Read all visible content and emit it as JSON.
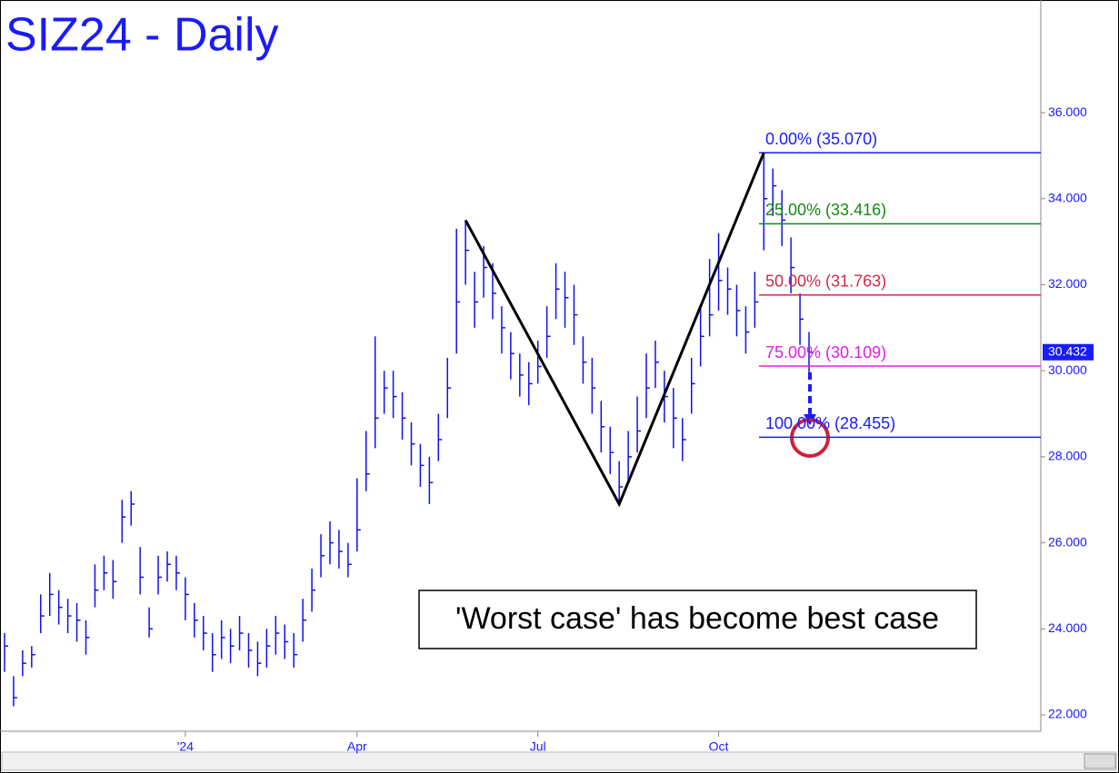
{
  "chart_data": {
    "type": "ohlc",
    "title": "SIZ24 - Daily",
    "annotation": "'Worst case' has become best case",
    "color": "#1010ee",
    "categories": [
      null,
      null,
      null,
      null,
      null,
      null,
      null,
      null,
      null,
      null,
      null,
      null,
      null,
      null,
      null,
      null,
      null,
      null,
      null,
      null,
      "'24",
      null,
      null,
      null,
      null,
      null,
      null,
      null,
      null,
      null,
      null,
      null,
      null,
      null,
      null,
      null,
      null,
      null,
      null,
      "Apr",
      null,
      null,
      null,
      null,
      null,
      null,
      null,
      null,
      null,
      null,
      null,
      null,
      null,
      null,
      null,
      null,
      null,
      null,
      null,
      "Jul",
      null,
      null,
      null,
      null,
      null,
      null,
      null,
      null,
      null,
      null,
      null,
      null,
      null,
      null,
      null,
      null,
      null,
      null,
      null,
      "Oct",
      null,
      null,
      null,
      null,
      null,
      null,
      null,
      null,
      null,
      null
    ],
    "high": [
      23.9,
      22.9,
      23.5,
      23.6,
      24.8,
      25.3,
      24.9,
      24.7,
      24.6,
      24.2,
      25.5,
      25.7,
      25.6,
      27.0,
      27.2,
      25.9,
      24.5,
      25.7,
      25.8,
      25.7,
      25.2,
      24.6,
      24.3,
      23.9,
      24.2,
      24.0,
      24.3,
      23.9,
      23.7,
      24.0,
      24.3,
      24.1,
      23.9,
      24.7,
      25.4,
      26.2,
      26.5,
      26.3,
      26.0,
      27.5,
      28.6,
      30.8,
      30.0,
      30.0,
      29.5,
      28.8,
      28.3,
      28.0,
      29.0,
      30.3,
      33.3,
      33.5,
      32.3,
      32.9,
      32.5,
      31.5,
      30.9,
      30.4,
      30.2,
      30.7,
      31.5,
      32.5,
      32.3,
      32.0,
      30.8,
      30.3,
      29.3,
      28.7,
      27.9,
      28.6,
      29.4,
      30.4,
      30.7,
      30.0,
      29.6,
      28.9,
      30.3,
      31.5,
      32.6,
      33.2,
      32.4,
      32.0,
      31.5,
      32.3,
      35.07,
      34.7,
      34.2,
      33.1,
      31.8,
      30.9
    ],
    "low": [
      23.0,
      22.2,
      22.9,
      23.1,
      23.9,
      24.3,
      24.1,
      23.9,
      23.7,
      23.4,
      24.5,
      24.9,
      24.7,
      26.0,
      26.4,
      24.8,
      23.8,
      24.8,
      25.1,
      24.9,
      24.2,
      23.8,
      23.5,
      23.0,
      23.3,
      23.2,
      23.5,
      23.1,
      22.9,
      23.1,
      23.4,
      23.3,
      23.1,
      23.7,
      24.4,
      25.2,
      25.5,
      25.4,
      25.2,
      25.8,
      27.2,
      28.2,
      29.0,
      28.9,
      28.4,
      27.8,
      27.3,
      26.9,
      27.9,
      28.9,
      30.4,
      32.0,
      31.0,
      31.7,
      31.2,
      30.4,
      29.8,
      29.4,
      29.2,
      29.7,
      30.3,
      31.2,
      31.0,
      30.6,
      29.7,
      29.0,
      28.1,
      27.6,
      26.9,
      27.4,
      28.1,
      28.9,
      29.6,
      28.8,
      28.2,
      27.9,
      29.0,
      30.1,
      30.8,
      31.4,
      31.3,
      30.8,
      30.4,
      31.0,
      32.8,
      33.6,
      32.9,
      31.8,
      30.6,
      29.8
    ],
    "close": [
      23.6,
      22.4,
      23.2,
      23.4,
      24.3,
      24.8,
      24.5,
      24.3,
      24.2,
      23.8,
      24.9,
      25.3,
      25.1,
      26.6,
      26.9,
      25.2,
      24.0,
      25.2,
      25.5,
      25.3,
      24.8,
      24.2,
      23.9,
      23.4,
      23.8,
      23.6,
      23.9,
      23.5,
      23.2,
      23.6,
      23.9,
      23.7,
      23.4,
      24.2,
      24.9,
      25.7,
      26.0,
      25.8,
      25.5,
      26.3,
      27.6,
      28.9,
      29.6,
      29.4,
      28.9,
      28.3,
      27.8,
      27.4,
      28.4,
      29.6,
      31.6,
      32.8,
      31.6,
      32.4,
      31.8,
      31.0,
      30.4,
      29.9,
      29.7,
      30.1,
      30.8,
      31.9,
      31.7,
      31.3,
      30.2,
      29.6,
      28.7,
      28.1,
      27.3,
      28.0,
      28.6,
      29.6,
      30.2,
      29.4,
      28.9,
      28.4,
      29.7,
      30.8,
      31.3,
      32.1,
      31.9,
      31.4,
      30.9,
      31.6,
      34.0,
      34.3,
      33.5,
      32.4,
      31.2,
      30.432
    ],
    "ylim": [
      21.62,
      38.62
    ],
    "yticks": [
      {
        "value": 22,
        "label": "22.000"
      },
      {
        "value": 24,
        "label": "24.000"
      },
      {
        "value": 26,
        "label": "26.000"
      },
      {
        "value": 28,
        "label": "28.000"
      },
      {
        "value": 30,
        "label": "30.000"
      },
      {
        "value": 32,
        "label": "32.000"
      },
      {
        "value": 34,
        "label": "34.000"
      },
      {
        "value": 36,
        "label": "36.000"
      }
    ],
    "fib_levels": [
      {
        "label": "0.00% (35.070)",
        "value": 35.07,
        "color": "#1a1aff"
      },
      {
        "label": "25.00% (33.416)",
        "value": 33.416,
        "color": "#138a13"
      },
      {
        "label": "50.00% (31.763)",
        "value": 31.763,
        "color": "#d02a48"
      },
      {
        "label": "75.00% (30.109)",
        "value": 30.109,
        "color": "#e020e0"
      },
      {
        "label": "100.00% (28.455)",
        "value": 28.455,
        "color": "#1a1aff"
      }
    ],
    "pattern": {
      "index": [
        51,
        68,
        84
      ],
      "values": [
        33.5,
        26.9,
        35.07
      ],
      "color": "#000000"
    }
  }
}
